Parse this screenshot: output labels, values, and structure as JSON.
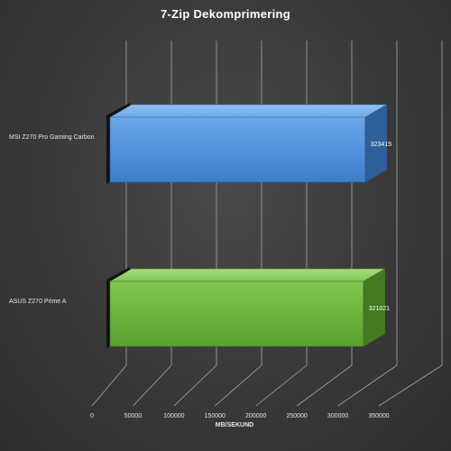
{
  "chart_data": {
    "type": "bar",
    "orientation": "horizontal",
    "title": "7-Zip Dekomprimering",
    "xlabel": "MB/SEKUND",
    "ylabel": "",
    "categories": [
      "MSI Z270 Pro Gaming Carbon",
      "ASUS Z270 Prime A"
    ],
    "values": [
      323415,
      321021
    ],
    "data_labels": [
      "323415",
      "321021"
    ],
    "xlim": [
      0,
      350000
    ],
    "x_ticks": [
      0,
      50000,
      100000,
      150000,
      200000,
      250000,
      300000,
      350000
    ],
    "x_tick_labels": [
      "0",
      "50000",
      "100000",
      "150000",
      "200000",
      "250000",
      "300000",
      "350000"
    ],
    "grid": "vertical",
    "legend": "none",
    "style": "3d",
    "colors": {
      "series_bar_1": "#4f8fd8",
      "series_bar_2": "#6fba3f",
      "background": "#3a3a3a",
      "text": "#e6e6e6"
    }
  }
}
